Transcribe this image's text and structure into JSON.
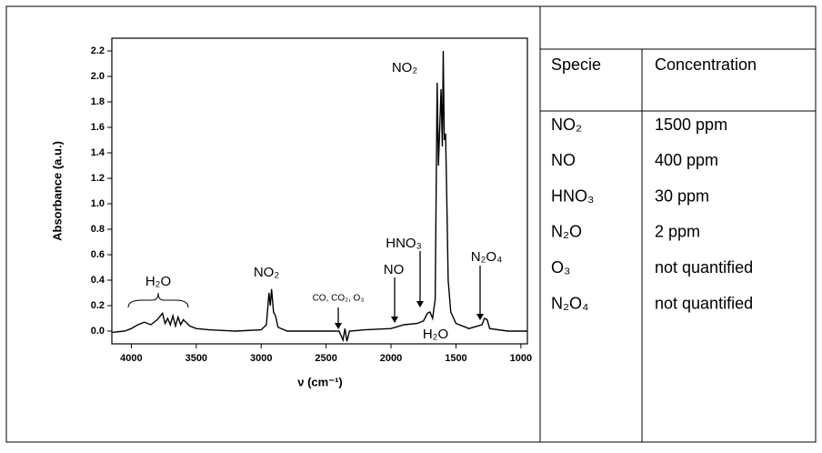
{
  "chart_data": {
    "type": "line",
    "xlabel": "ν (cm⁻¹)",
    "ylabel": "Absorbance (a.u.)",
    "x": [
      4150,
      4050,
      4000,
      3950,
      3900,
      3850,
      3800,
      3760,
      3740,
      3720,
      3700,
      3680,
      3660,
      3640,
      3620,
      3600,
      3550,
      3500,
      3400,
      3200,
      3000,
      2960,
      2940,
      2930,
      2920,
      2905,
      2890,
      2870,
      2800,
      2500,
      2400,
      2370,
      2355,
      2340,
      2320,
      2200,
      2000,
      1900,
      1800,
      1750,
      1720,
      1700,
      1680,
      1660,
      1645,
      1635,
      1625,
      1615,
      1605,
      1598,
      1590,
      1580,
      1570,
      1560,
      1540,
      1500,
      1400,
      1300,
      1280,
      1260,
      1240,
      1100,
      950
    ],
    "values": [
      -0.01,
      0.0,
      0.02,
      0.05,
      0.07,
      0.05,
      0.09,
      0.14,
      0.06,
      0.1,
      0.05,
      0.12,
      0.04,
      0.11,
      0.05,
      0.09,
      0.04,
      0.02,
      0.01,
      0.0,
      0.01,
      0.05,
      0.3,
      0.2,
      0.33,
      0.15,
      0.12,
      0.03,
      0.0,
      0.0,
      0.0,
      -0.07,
      0.02,
      -0.08,
      0.0,
      0.01,
      0.02,
      0.05,
      0.06,
      0.08,
      0.14,
      0.15,
      0.1,
      0.25,
      1.95,
      1.3,
      1.6,
      1.9,
      1.45,
      2.2,
      1.5,
      1.55,
      1.0,
      0.4,
      0.15,
      0.06,
      0.02,
      0.05,
      0.1,
      0.09,
      0.02,
      0.0,
      0.0
    ],
    "color": "#000000",
    "xlim": [
      4150,
      950
    ],
    "xticks": [
      4000,
      3500,
      3000,
      2500,
      2000,
      1500,
      1000
    ],
    "ylim": [
      -0.1,
      2.3
    ],
    "yticks": [
      {
        "value": 0.0,
        "label": "0.0"
      },
      0.2,
      0.4,
      0.6,
      0.8,
      {
        "value": 1.0,
        "label": "1.0"
      },
      1.2,
      1.4,
      1.6,
      1.8,
      {
        "value": 2.0,
        "label": "2.0"
      },
      2.2
    ],
    "annotations": [
      "H₂O",
      "NO₂",
      "CO, CO₂, O₃",
      "NO",
      "HNO₃",
      "NO₂",
      "N₂O₄",
      "H₂O"
    ]
  },
  "table": {
    "header": [
      "Specie",
      "Concentration"
    ],
    "rows": [
      [
        "NO₂",
        "1500 ppm"
      ],
      [
        "NO",
        "400 ppm"
      ],
      [
        "HNO₃",
        "30 ppm"
      ],
      [
        "N₂O",
        "2 ppm"
      ],
      [
        "O₃",
        "not quantified"
      ],
      [
        "N₂O₄",
        "not quantified"
      ]
    ]
  }
}
